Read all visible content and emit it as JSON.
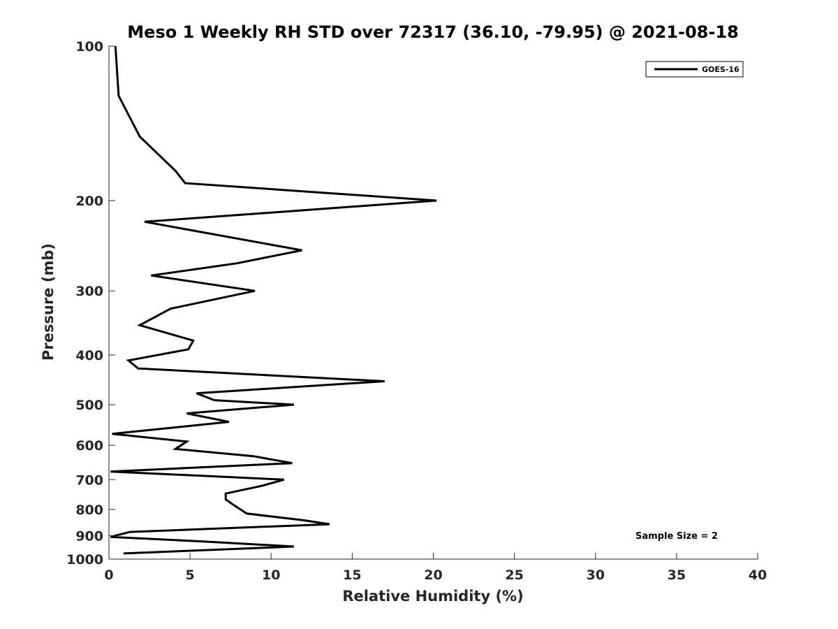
{
  "chart_data": {
    "type": "line",
    "title": "Meso 1 Weekly RH STD over 72317 (36.10, -79.95) @ 2021-08-18",
    "xlabel": "Relative Humidity (%)",
    "ylabel": "Pressure (mb)",
    "xlim": [
      0,
      40
    ],
    "ylim": [
      100,
      1000
    ],
    "y_scale": "log",
    "y_reversed": true,
    "x_ticks": [
      0,
      5,
      10,
      15,
      20,
      25,
      30,
      35,
      40
    ],
    "y_ticks": [
      100,
      200,
      300,
      400,
      500,
      600,
      700,
      800,
      900,
      1000
    ],
    "grid": false,
    "legend_position": "top-right",
    "series": [
      {
        "name": "GOES-16",
        "color": "#000000",
        "points": [
          [
            0.4,
            100
          ],
          [
            0.6,
            125
          ],
          [
            1.9,
            150
          ],
          [
            4.1,
            175
          ],
          [
            4.7,
            185
          ],
          [
            20.2,
            200
          ],
          [
            2.2,
            220
          ],
          [
            11.9,
            250
          ],
          [
            7.9,
            265
          ],
          [
            2.6,
            280
          ],
          [
            9.0,
            300
          ],
          [
            3.8,
            325
          ],
          [
            1.9,
            350
          ],
          [
            5.2,
            375
          ],
          [
            4.9,
            390
          ],
          [
            1.2,
            410
          ],
          [
            1.8,
            425
          ],
          [
            17.0,
            450
          ],
          [
            5.4,
            475
          ],
          [
            6.5,
            490
          ],
          [
            11.4,
            500
          ],
          [
            4.8,
            520
          ],
          [
            7.4,
            540
          ],
          [
            0.2,
            570
          ],
          [
            4.8,
            590
          ],
          [
            4.1,
            610
          ],
          [
            8.9,
            630
          ],
          [
            11.3,
            650
          ],
          [
            0.1,
            675
          ],
          [
            10.8,
            700
          ],
          [
            9.4,
            720
          ],
          [
            7.2,
            745
          ],
          [
            7.2,
            765
          ],
          [
            7.7,
            785
          ],
          [
            8.5,
            815
          ],
          [
            12.0,
            840
          ],
          [
            13.6,
            855
          ],
          [
            1.3,
            885
          ],
          [
            0.1,
            905
          ],
          [
            6.1,
            925
          ],
          [
            11.4,
            945
          ],
          [
            0.9,
            975
          ]
        ]
      }
    ],
    "annotations": [
      "Sample Size = 2"
    ]
  }
}
